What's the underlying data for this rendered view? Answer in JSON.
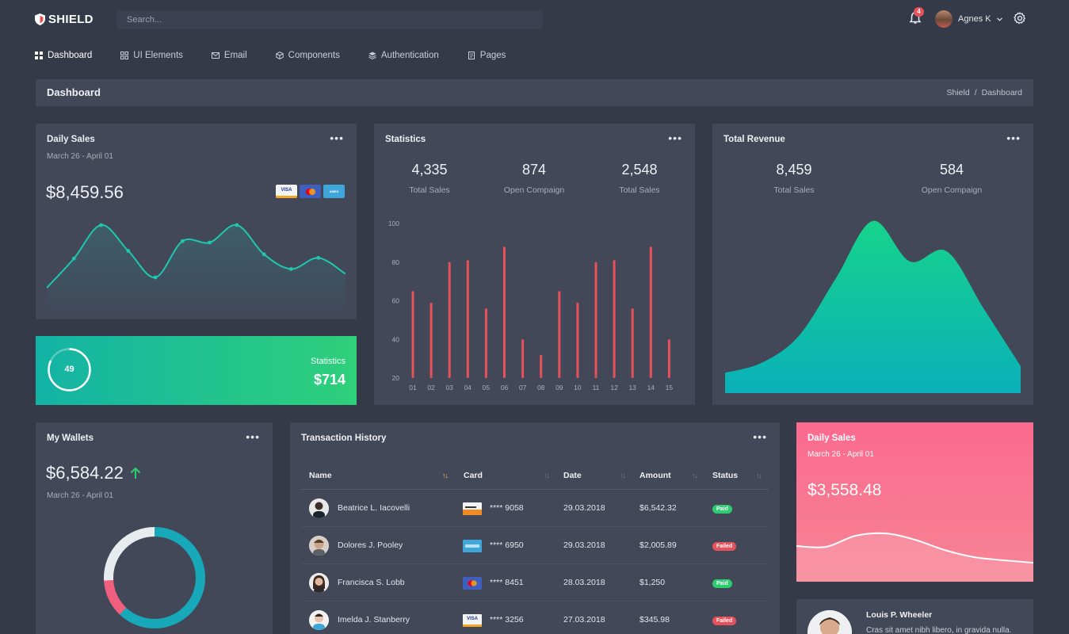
{
  "app": {
    "logo_text": "SHIELD",
    "search_placeholder": "Search...",
    "notification_count": "4",
    "user_name": "Agnes K"
  },
  "nav": [
    {
      "label": "Dashboard",
      "icon": "grid-icon"
    },
    {
      "label": "UI Elements",
      "icon": "apps-icon"
    },
    {
      "label": "Email",
      "icon": "mail-icon"
    },
    {
      "label": "Components",
      "icon": "cube-icon"
    },
    {
      "label": "Authentication",
      "icon": "layers-icon"
    },
    {
      "label": "Pages",
      "icon": "pages-icon"
    }
  ],
  "page": {
    "title": "Dashboard",
    "breadcrumb": [
      "Shield",
      "/",
      "Dashboard"
    ]
  },
  "daily_sales": {
    "title": "Daily Sales",
    "subtitle": "March 26 - April 01",
    "amount": "$8,459.56",
    "payment_icons": [
      "VISA",
      "mastercard",
      "AMERICAN EXPRESS"
    ],
    "points": [
      10,
      52,
      100,
      63,
      25,
      77,
      75,
      100,
      58,
      37,
      53,
      30
    ],
    "color": "#1fc7b0"
  },
  "stat_green": {
    "value": "49",
    "label": "Statistics",
    "amount": "$714",
    "progress": 0.82
  },
  "statistics": {
    "title": "Statistics",
    "kpis": [
      {
        "num": "4,335",
        "label": "Total Sales"
      },
      {
        "num": "874",
        "label": "Open Compaign"
      },
      {
        "num": "2,548",
        "label": "Total Sales"
      }
    ]
  },
  "revenue": {
    "title": "Total Revenue",
    "kpis": [
      {
        "num": "8,459",
        "label": "Total Sales"
      },
      {
        "num": "584",
        "label": "Open Compaign"
      }
    ]
  },
  "wallets": {
    "title": "My Wallets",
    "amount": "$6,584.22",
    "subtitle": "March 26 - April 01",
    "donut": [
      {
        "value": 0.62,
        "color": "#17a9b9"
      },
      {
        "value": 0.12,
        "color": "#f0607e"
      },
      {
        "value": 0.26,
        "color": "#e9ecef"
      }
    ]
  },
  "transactions": {
    "title": "Transaction History",
    "columns": [
      "Name",
      "Card",
      "Date",
      "Amount",
      "Status"
    ],
    "rows": [
      {
        "name": "Beatrice L. Iacovelli",
        "card_type": "discover",
        "card": "**** 9058",
        "date": "29.03.2018",
        "amount": "$6,542.32",
        "status": "Paid"
      },
      {
        "name": "Dolores J. Pooley",
        "card_type": "amex",
        "card": "**** 6950",
        "date": "29.03.2018",
        "amount": "$2,005.89",
        "status": "Failed"
      },
      {
        "name": "Francisca S. Lobb",
        "card_type": "mastercard",
        "card": "**** 8451",
        "date": "28.03.2018",
        "amount": "$1,250",
        "status": "Paid"
      },
      {
        "name": "Imelda J. Stanberry",
        "card_type": "visa",
        "card": "**** 3256",
        "date": "27.03.2018",
        "amount": "$345.98",
        "status": "Failed"
      }
    ]
  },
  "daily_sales_pink": {
    "title": "Daily Sales",
    "subtitle": "March 26 - April 01",
    "amount": "$3,558.48"
  },
  "profile": {
    "name": "Louis P. Wheeler",
    "bio": "Cras sit amet nibh libero, in gravida nulla."
  },
  "colors": {
    "bar": "#e7515a",
    "accent_green": "#2ecc71",
    "bg": "#343a47",
    "card": "#424857"
  },
  "chart_data": [
    {
      "type": "bar",
      "title": "Statistics",
      "categories": [
        "01",
        "02",
        "03",
        "04",
        "05",
        "06",
        "07",
        "08",
        "09",
        "10",
        "11",
        "12",
        "13",
        "14",
        "15"
      ],
      "values": [
        65,
        59,
        80,
        81,
        56,
        88,
        40,
        32,
        65,
        59,
        80,
        81,
        56,
        88,
        40
      ],
      "ylim": [
        20,
        100
      ],
      "yticks": [
        20,
        40,
        60,
        80,
        100
      ],
      "color": "#e7515a"
    },
    {
      "type": "area",
      "title": "Total Revenue",
      "x": [
        0,
        1,
        2,
        3,
        4,
        5,
        6,
        7,
        8
      ],
      "values": [
        30,
        45,
        85,
        170,
        255,
        195,
        210,
        125,
        40
      ],
      "ylim": [
        0,
        270
      ],
      "colors": [
        "#16d38b",
        "#0ab0b9"
      ]
    },
    {
      "type": "area",
      "title": "Daily Sales",
      "values": [
        45,
        44,
        58,
        61,
        53,
        40,
        31,
        27,
        24
      ],
      "ylim": [
        0,
        100
      ],
      "color": "#ffffff"
    }
  ]
}
